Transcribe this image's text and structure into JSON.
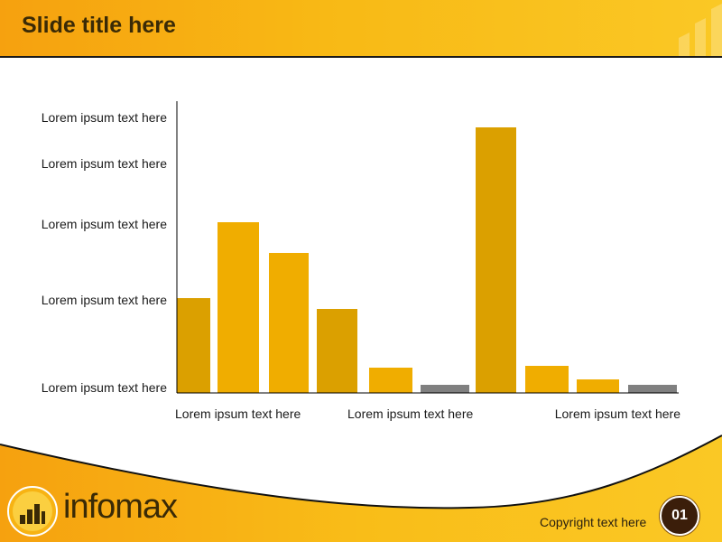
{
  "header": {
    "title": "Slide title here"
  },
  "footer": {
    "brand": "infomax",
    "copyright": "Copyright text here",
    "page_number": "01"
  },
  "colors": {
    "gold": "#f0ad00",
    "dark_gold": "#dba000",
    "gray": "#808080"
  },
  "chart_data": {
    "type": "bar",
    "title": "",
    "xlabel": "",
    "ylabel": "",
    "y_tick_labels": [
      "Lorem ipsum text here",
      "Lorem ipsum text here",
      "Lorem ipsum text here",
      "Lorem ipsum text here",
      "Lorem ipsum text here"
    ],
    "x_tick_labels": [
      "Lorem ipsum text here",
      "Lorem ipsum text here",
      "Lorem ipsum text here"
    ],
    "values": [
      105,
      189,
      155,
      93,
      28,
      9,
      294,
      30,
      15,
      9
    ],
    "bar_colors": [
      "#dba000",
      "#f0ad00",
      "#f0ad00",
      "#dba000",
      "#f0ad00",
      "#808080",
      "#dba000",
      "#f0ad00",
      "#f0ad00",
      "#808080"
    ],
    "ylim": [
      0,
      320
    ],
    "grid": false,
    "legend": "none"
  }
}
